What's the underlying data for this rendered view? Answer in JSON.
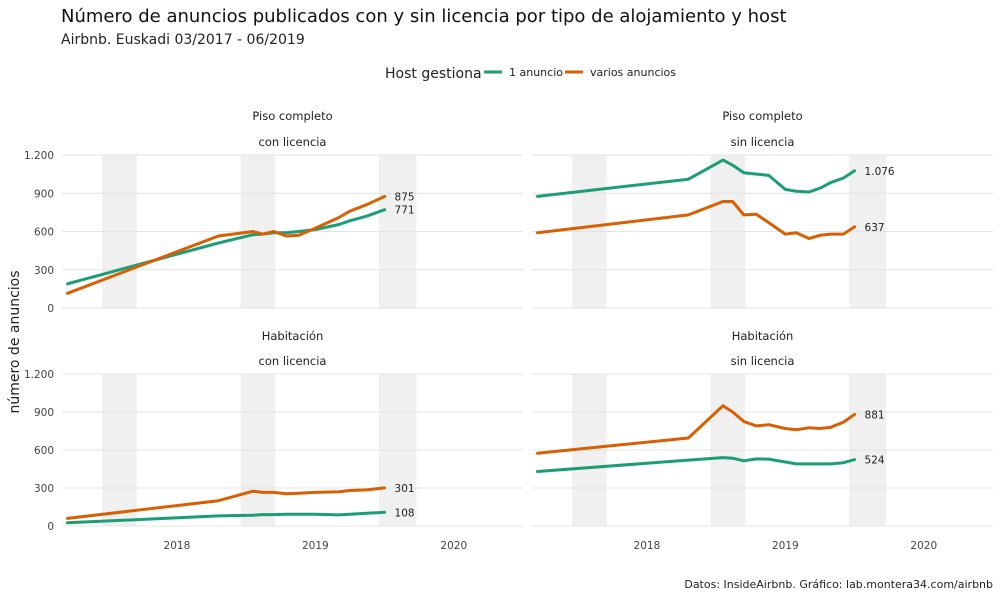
{
  "title": "Número de anuncios publicados con y sin licencia por tipo de alojamiento y host",
  "subtitle": "Airbnb. Euskadi 03/2017 - 06/2019",
  "caption": "Datos: InsideAirbnb. Gráfico: lab.montera34.com/airbnb",
  "legend": {
    "title": "Host gestiona",
    "items": [
      {
        "label": "1 anuncio",
        "color": "#1b9e77"
      },
      {
        "label": "varios anuncios",
        "color": "#d95f02"
      }
    ]
  },
  "chart_data": {
    "type": "line",
    "ylabel": "número de anuncios",
    "ylim": [
      0,
      1200
    ],
    "yticks": [
      0,
      300,
      600,
      900,
      1200
    ],
    "ytick_labels": [
      "0",
      "300",
      "600",
      "900",
      "1.200"
    ],
    "xlim": [
      2017.17,
      2020.5
    ],
    "xticks": [
      2018,
      2019,
      2020
    ],
    "xtick_labels": [
      "2018",
      "2019",
      "2020"
    ],
    "summer_bands": [
      [
        2017.46,
        2017.71
      ],
      [
        2018.46,
        2018.71
      ],
      [
        2019.46,
        2019.73
      ]
    ],
    "grid": true,
    "legend_position": "top",
    "panels": [
      {
        "strip1": "Piso completo",
        "strip2": "con licencia",
        "series": [
          {
            "name": "1 anuncio",
            "color": "#1b9e77",
            "end_label": "771",
            "x": [
              2017.21,
              2018.3,
              2018.55,
              2018.62,
              2018.7,
              2018.79,
              2018.88,
              2019.0,
              2019.17,
              2019.25,
              2019.37,
              2019.5
            ],
            "y": [
              190,
              510,
              575,
              580,
              590,
              590,
              600,
              615,
              655,
              685,
              720,
              771
            ]
          },
          {
            "name": "varios anuncios",
            "color": "#d95f02",
            "end_label": "875",
            "x": [
              2017.21,
              2018.3,
              2018.55,
              2018.62,
              2018.7,
              2018.79,
              2018.88,
              2019.0,
              2019.17,
              2019.25,
              2019.37,
              2019.5
            ],
            "y": [
              115,
              565,
              600,
              580,
              600,
              565,
              570,
              625,
              710,
              760,
              810,
              875
            ]
          }
        ]
      },
      {
        "strip1": "Piso completo",
        "strip2": "sin licencia",
        "series": [
          {
            "name": "1 anuncio",
            "color": "#1b9e77",
            "end_label": "1.076",
            "x": [
              2017.21,
              2018.3,
              2018.55,
              2018.62,
              2018.7,
              2018.79,
              2018.88,
              2019.0,
              2019.08,
              2019.17,
              2019.25,
              2019.33,
              2019.42,
              2019.5
            ],
            "y": [
              875,
              1010,
              1160,
              1120,
              1060,
              1050,
              1040,
              930,
              915,
              910,
              940,
              985,
              1020,
              1076
            ]
          },
          {
            "name": "varios anuncios",
            "color": "#d95f02",
            "end_label": "637",
            "x": [
              2017.21,
              2018.3,
              2018.55,
              2018.62,
              2018.7,
              2018.79,
              2018.88,
              2019.0,
              2019.08,
              2019.17,
              2019.25,
              2019.33,
              2019.42,
              2019.5
            ],
            "y": [
              590,
              730,
              835,
              835,
              730,
              735,
              670,
              580,
              590,
              545,
              570,
              580,
              580,
              637
            ]
          }
        ]
      },
      {
        "strip1": "Habitación",
        "strip2": "con licencia",
        "series": [
          {
            "name": "1 anuncio",
            "color": "#1b9e77",
            "end_label": "108",
            "x": [
              2017.21,
              2018.3,
              2018.55,
              2018.62,
              2018.7,
              2018.79,
              2018.88,
              2019.0,
              2019.17,
              2019.25,
              2019.37,
              2019.5
            ],
            "y": [
              25,
              80,
              85,
              90,
              90,
              92,
              92,
              92,
              88,
              92,
              100,
              108
            ]
          },
          {
            "name": "varios anuncios",
            "color": "#d95f02",
            "end_label": "301",
            "x": [
              2017.21,
              2018.3,
              2018.55,
              2018.62,
              2018.7,
              2018.79,
              2018.88,
              2019.0,
              2019.17,
              2019.25,
              2019.37,
              2019.5
            ],
            "y": [
              60,
              200,
              275,
              265,
              265,
              255,
              258,
              265,
              270,
              280,
              285,
              301
            ]
          }
        ]
      },
      {
        "strip1": "Habitación",
        "strip2": "sin licencia",
        "series": [
          {
            "name": "1 anuncio",
            "color": "#1b9e77",
            "end_label": "524",
            "x": [
              2017.21,
              2018.3,
              2018.55,
              2018.62,
              2018.7,
              2018.79,
              2018.88,
              2019.0,
              2019.08,
              2019.17,
              2019.25,
              2019.33,
              2019.42,
              2019.5
            ],
            "y": [
              430,
              520,
              540,
              535,
              515,
              530,
              528,
              505,
              490,
              490,
              490,
              490,
              500,
              524
            ]
          },
          {
            "name": "varios anuncios",
            "color": "#d95f02",
            "end_label": "881",
            "x": [
              2017.21,
              2018.3,
              2018.55,
              2018.62,
              2018.7,
              2018.79,
              2018.88,
              2019.0,
              2019.08,
              2019.17,
              2019.25,
              2019.33,
              2019.42,
              2019.5
            ],
            "y": [
              575,
              695,
              950,
              900,
              825,
              790,
              800,
              770,
              760,
              775,
              770,
              780,
              820,
              881
            ]
          }
        ]
      }
    ]
  }
}
